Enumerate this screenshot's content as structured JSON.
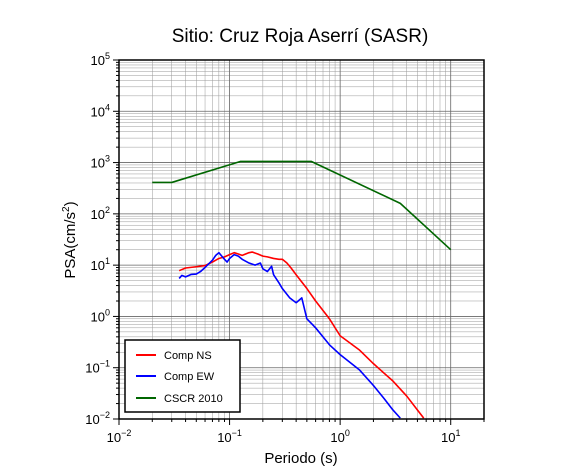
{
  "chart_data": {
    "type": "line",
    "title": "Sitio: Cruz Roja Aserrí (SASR)",
    "xlabel": "Periodo (s)",
    "ylabel_main": "PSA(cm/s",
    "ylabel_sup": "2",
    "ylabel_tail": ")",
    "x_scale": "log",
    "y_scale": "log",
    "xlim": [
      0.01,
      20
    ],
    "ylim": [
      0.01,
      100000
    ],
    "grid": true,
    "legend_position": "bottom-left",
    "x_ticks": [
      {
        "value": 0.01,
        "base": "10",
        "exp": "−2"
      },
      {
        "value": 0.1,
        "base": "10",
        "exp": "−1"
      },
      {
        "value": 1,
        "base": "10",
        "exp": "0"
      },
      {
        "value": 10,
        "base": "10",
        "exp": "1"
      }
    ],
    "y_ticks": [
      {
        "value": 0.01,
        "base": "10",
        "exp": "−2"
      },
      {
        "value": 0.1,
        "base": "10",
        "exp": "−1"
      },
      {
        "value": 1,
        "base": "10",
        "exp": "0"
      },
      {
        "value": 10,
        "base": "10",
        "exp": "1"
      },
      {
        "value": 100,
        "base": "10",
        "exp": "2"
      },
      {
        "value": 1000,
        "base": "10",
        "exp": "3"
      },
      {
        "value": 10000,
        "base": "10",
        "exp": "4"
      },
      {
        "value": 100000,
        "base": "10",
        "exp": "5"
      }
    ],
    "series": [
      {
        "name": "Comp NS",
        "color": "#ff0000",
        "points": [
          [
            0.035,
            7.8
          ],
          [
            0.04,
            8.8
          ],
          [
            0.05,
            9.3
          ],
          [
            0.06,
            9.8
          ],
          [
            0.07,
            11.5
          ],
          [
            0.08,
            13.5
          ],
          [
            0.09,
            14.5
          ],
          [
            0.1,
            16
          ],
          [
            0.11,
            17.5
          ],
          [
            0.12,
            16.5
          ],
          [
            0.13,
            15.5
          ],
          [
            0.15,
            17.5
          ],
          [
            0.16,
            18
          ],
          [
            0.18,
            16.5
          ],
          [
            0.2,
            15
          ],
          [
            0.22,
            14.5
          ],
          [
            0.25,
            13.5
          ],
          [
            0.28,
            13
          ],
          [
            0.3,
            13
          ],
          [
            0.33,
            11
          ],
          [
            0.36,
            8.8
          ],
          [
            0.4,
            6.5
          ],
          [
            0.5,
            3.5
          ],
          [
            0.6,
            2
          ],
          [
            0.8,
            0.9
          ],
          [
            1,
            0.42
          ],
          [
            1.5,
            0.22
          ],
          [
            2,
            0.12
          ],
          [
            3,
            0.055
          ],
          [
            4,
            0.028
          ],
          [
            5,
            0.015
          ],
          [
            5.7,
            0.0104
          ]
        ]
      },
      {
        "name": "Comp EW",
        "color": "#0000ff",
        "points": [
          [
            0.035,
            5.5
          ],
          [
            0.037,
            6.3
          ],
          [
            0.04,
            5.9
          ],
          [
            0.045,
            6.6
          ],
          [
            0.05,
            6.7
          ],
          [
            0.055,
            7.6
          ],
          [
            0.06,
            9
          ],
          [
            0.07,
            12.5
          ],
          [
            0.075,
            15.5
          ],
          [
            0.08,
            17.5
          ],
          [
            0.085,
            15
          ],
          [
            0.09,
            13
          ],
          [
            0.095,
            11.5
          ],
          [
            0.1,
            13.5
          ],
          [
            0.11,
            16
          ],
          [
            0.12,
            15
          ],
          [
            0.13,
            13
          ],
          [
            0.15,
            11
          ],
          [
            0.17,
            10
          ],
          [
            0.19,
            11
          ],
          [
            0.2,
            8.5
          ],
          [
            0.22,
            7.5
          ],
          [
            0.24,
            9.5
          ],
          [
            0.25,
            6.5
          ],
          [
            0.28,
            4.5
          ],
          [
            0.3,
            3.5
          ],
          [
            0.35,
            2.3
          ],
          [
            0.4,
            1.85
          ],
          [
            0.45,
            2.3
          ],
          [
            0.5,
            0.9
          ],
          [
            0.6,
            0.6
          ],
          [
            0.7,
            0.4
          ],
          [
            0.8,
            0.28
          ],
          [
            1,
            0.18
          ],
          [
            1.5,
            0.09
          ],
          [
            2,
            0.045
          ],
          [
            2.5,
            0.025
          ],
          [
            3,
            0.015
          ],
          [
            3.5,
            0.0104
          ]
        ]
      },
      {
        "name": "CSCR 2010",
        "color": "#006600",
        "points": [
          [
            0.02,
            410
          ],
          [
            0.03,
            410
          ],
          [
            0.125,
            1050
          ],
          [
            0.55,
            1050
          ],
          [
            3.5,
            160
          ],
          [
            10,
            20
          ]
        ]
      }
    ]
  }
}
